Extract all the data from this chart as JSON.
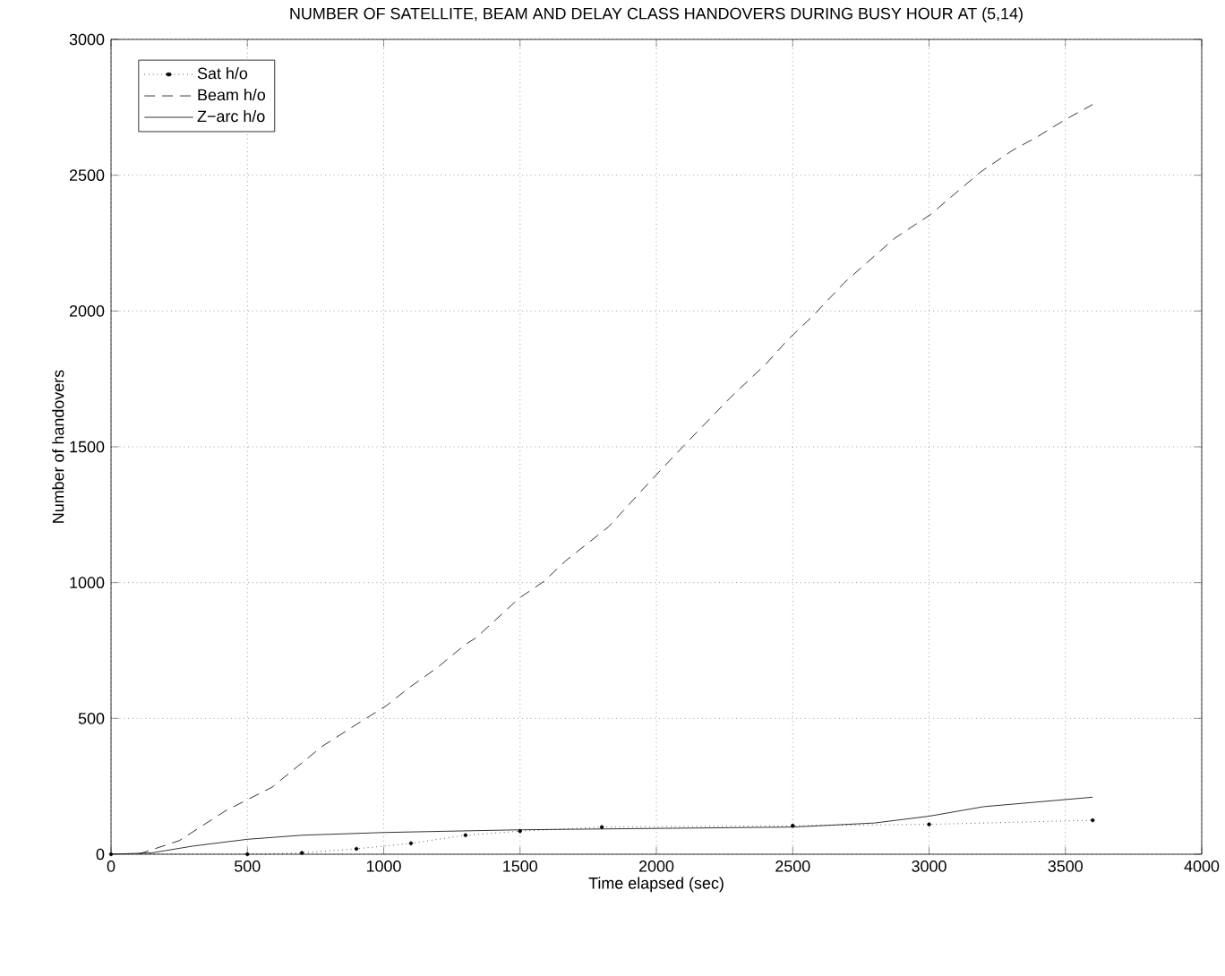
{
  "chart_data": {
    "type": "line",
    "title": "NUMBER OF SATELLITE, BEAM AND DELAY CLASS HANDOVERS DURING BUSY HOUR AT (5,14)",
    "xlabel": "Time elapsed (sec)",
    "ylabel": "Number of handovers",
    "xlim": [
      0,
      4000
    ],
    "ylim": [
      0,
      3000
    ],
    "xticks": [
      0,
      500,
      1000,
      1500,
      2000,
      2500,
      3000,
      3500,
      4000
    ],
    "yticks": [
      0,
      500,
      1000,
      1500,
      2000,
      2500,
      3000
    ],
    "grid": true,
    "legend": "top left",
    "series": [
      {
        "name": "Sat h/o",
        "color": "#000000",
        "line_style": "dotted",
        "marker": "circle",
        "x": [
          0,
          500,
          700,
          900,
          1100,
          1300,
          1500,
          1800,
          2500,
          3000,
          3600
        ],
        "values": [
          0,
          0,
          5,
          20,
          40,
          70,
          85,
          100,
          105,
          110,
          125
        ]
      },
      {
        "name": "Beam h/o",
        "color": "#000000",
        "line_style": "dashed",
        "marker": "none",
        "x": [
          100,
          250,
          420,
          591,
          774,
          919,
          1010,
          1089,
          1194,
          1299,
          1339,
          1496,
          1588,
          1667,
          1824,
          1995,
          2113,
          2270,
          2402,
          2480,
          2572,
          2690,
          2874,
          3005,
          3189,
          3307,
          3400,
          3500,
          3600
        ],
        "values": [
          0,
          50,
          160,
          247,
          397,
          490,
          547,
          610,
          685,
          772,
          797,
          942,
          1005,
          1080,
          1205,
          1392,
          1517,
          1680,
          1805,
          1892,
          1980,
          2105,
          2268,
          2355,
          2512,
          2592,
          2643,
          2705,
          2760
        ]
      },
      {
        "name": "Z−arc h/o",
        "color": "#000000",
        "line_style": "solid",
        "marker": "none",
        "x": [
          0,
          150,
          300,
          500,
          700,
          1000,
          1500,
          2000,
          2500,
          2800,
          3000,
          3200,
          3600
        ],
        "values": [
          0,
          5,
          30,
          55,
          70,
          80,
          90,
          95,
          100,
          115,
          140,
          175,
          210
        ]
      }
    ]
  }
}
